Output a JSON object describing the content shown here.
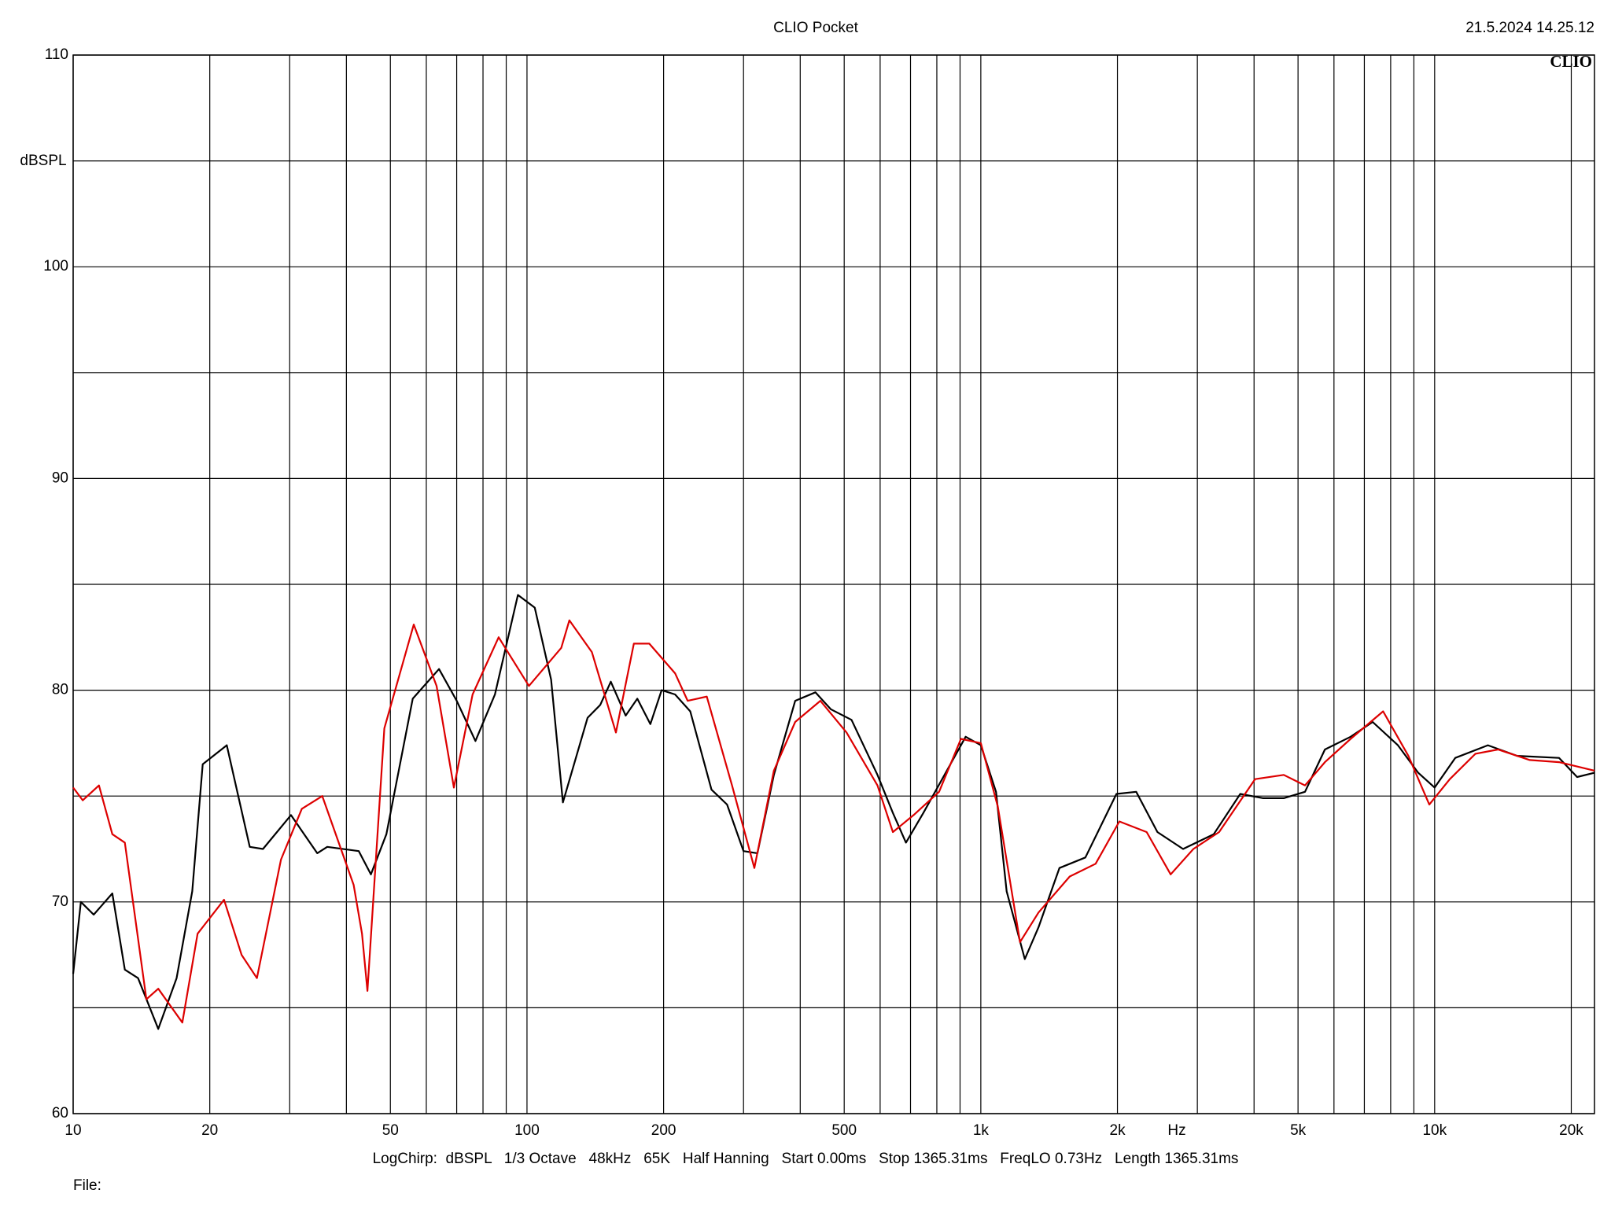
{
  "chart_data": {
    "type": "line",
    "title": "CLIO Pocket",
    "date": "21.5.2024 14.25.12",
    "logo": "CLIO",
    "y_label": "dBSPL",
    "x_label": "Hz",
    "footer": "LogChirp:  dBSPL   1/3 Octave   48kHz   65K   Half Hanning   Start 0.00ms   Stop 1365.31ms   FreqLO 0.73Hz   Length 1365.31ms",
    "file_label": "File:",
    "log_x": true,
    "grid": true,
    "xlim": [
      10,
      22500
    ],
    "ylim": [
      60,
      110
    ],
    "xticks": [
      10,
      20,
      50,
      100,
      200,
      500,
      {
        "value": 1000,
        "label": "1k"
      },
      {
        "value": 2000,
        "label": "2k"
      },
      {
        "value": 5000,
        "label": "5k"
      },
      {
        "value": 10000,
        "label": "10k"
      },
      {
        "value": 20000,
        "label": "20k"
      }
    ],
    "minor_xticks": [
      30,
      40,
      60,
      70,
      80,
      90,
      300,
      400,
      600,
      700,
      800,
      900,
      3000,
      4000,
      6000,
      7000,
      8000,
      9000
    ],
    "yticks": [
      60,
      70,
      80,
      90,
      100,
      110
    ],
    "minor_yticks": [
      65,
      75,
      85,
      95,
      105
    ],
    "series": [
      {
        "color": "#000000",
        "x": [
          10,
          10.4,
          11.1,
          12.2,
          13.0,
          13.9,
          15.4,
          16.9,
          18.3,
          19.3,
          21.8,
          24.5,
          26.2,
          30.2,
          34.5,
          36.3,
          42.6,
          45.3,
          49,
          56,
          64,
          70,
          77,
          85,
          95.5,
          104,
          113,
          120,
          136,
          145,
          153,
          165,
          175,
          187,
          198,
          212,
          229,
          255,
          276,
          300,
          322,
          350,
          390,
          432,
          467,
          519,
          592,
          640,
          684,
          747,
          852,
          926,
          1000,
          1080,
          1140,
          1250,
          1340,
          1490,
          1700,
          1990,
          2200,
          2450,
          2790,
          3260,
          3730,
          4190,
          4650,
          5180,
          5730,
          6530,
          7300,
          8300,
          9200,
          10000,
          11100,
          13100,
          15200,
          18800,
          20600,
          22500
        ],
        "values": [
          66.6,
          70,
          69.4,
          70.4,
          66.8,
          66.4,
          64,
          66.4,
          70.5,
          76.5,
          77.4,
          72.6,
          72.5,
          74.1,
          72.3,
          72.6,
          72.4,
          71.3,
          73.2,
          79.6,
          81,
          79.5,
          77.6,
          79.8,
          84.5,
          83.9,
          80.5,
          74.7,
          78.7,
          79.3,
          80.4,
          78.8,
          79.6,
          78.4,
          80,
          79.8,
          79.0,
          75.3,
          74.6,
          72.4,
          72.3,
          76,
          79.5,
          79.9,
          79.1,
          78.6,
          76,
          74.2,
          72.8,
          74.2,
          76.4,
          77.8,
          77.4,
          75.2,
          70.5,
          67.3,
          68.8,
          71.6,
          72.1,
          75.1,
          75.2,
          73.3,
          72.5,
          73.2,
          75.1,
          74.9,
          74.9,
          75.2,
          77.2,
          77.8,
          78.5,
          77.4,
          76.1,
          75.4,
          76.8,
          77.4,
          76.9,
          76.8,
          75.9,
          76.1
        ]
      },
      {
        "color": "#dd0000",
        "x": [
          10,
          10.5,
          11.4,
          12.2,
          13.0,
          14.5,
          15.4,
          17.4,
          18.8,
          21.5,
          23.5,
          25.4,
          28.7,
          31.9,
          35.4,
          41.5,
          43.3,
          44.5,
          48.5,
          56.3,
          63.2,
          69,
          75.9,
          86.6,
          101,
          119,
          124,
          139,
          157,
          172,
          186,
          212,
          226,
          249,
          283,
          317,
          350,
          390,
          443,
          506,
          592,
          640,
          711,
          809,
          904,
          1000,
          1090,
          1220,
          1340,
          1570,
          1790,
          2020,
          2320,
          2620,
          2940,
          3350,
          4020,
          4650,
          5180,
          5730,
          6530,
          7700,
          8750,
          9730,
          10800,
          12300,
          13800,
          16200,
          18800,
          22500
        ],
        "values": [
          75.4,
          74.8,
          75.5,
          73.2,
          72.8,
          65.4,
          65.9,
          64.3,
          68.5,
          70.1,
          67.5,
          66.4,
          72,
          74.4,
          75.0,
          70.8,
          68.5,
          65.8,
          78.2,
          83.1,
          80.2,
          75.4,
          79.8,
          82.5,
          80.2,
          82,
          83.3,
          81.8,
          78.0,
          82.2,
          82.2,
          80.8,
          79.5,
          79.7,
          75.5,
          71.6,
          76.2,
          78.5,
          79.5,
          78.0,
          75.5,
          73.3,
          74.1,
          75.2,
          77.7,
          77.5,
          74.5,
          68.1,
          69.5,
          71.2,
          71.8,
          73.8,
          73.3,
          71.3,
          72.5,
          73.3,
          75.8,
          76.0,
          75.5,
          76.6,
          77.7,
          79.0,
          76.9,
          74.6,
          75.8,
          77.0,
          77.2,
          76.7,
          76.6,
          76.2
        ]
      }
    ]
  }
}
